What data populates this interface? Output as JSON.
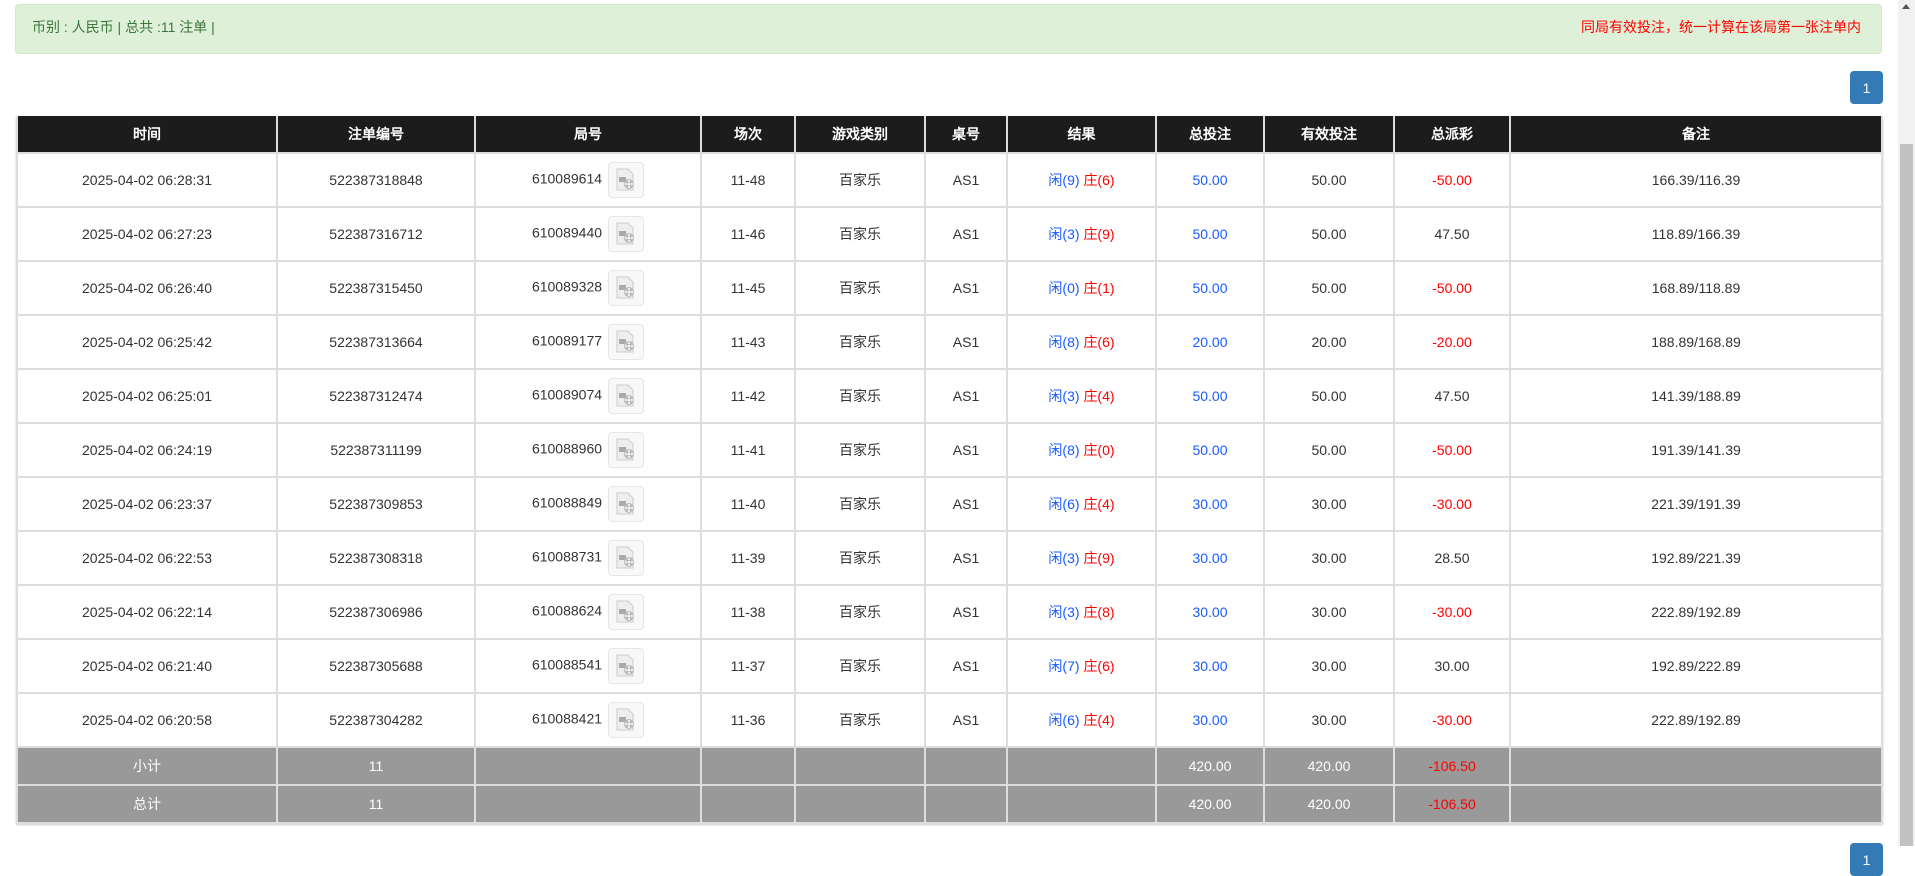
{
  "summary": {
    "left": "币别 : 人民币 | 总共 :11 注单 |",
    "right": "同局有效投注，统一计算在该局第一张注单内"
  },
  "pagination": {
    "current": "1"
  },
  "colors": {
    "player": "#1a5cff",
    "banker": "#ff0000",
    "negative": "#ff0000",
    "header_bg": "#1c1c1c",
    "summary_bg": "#999999",
    "alert_bg": "#dff0d8",
    "pager": "#337ab7"
  },
  "table": {
    "headers": [
      "时间",
      "注单编号",
      "局号",
      "场次",
      "游戏类别",
      "桌号",
      "结果",
      "总投注",
      "有效投注",
      "总派彩",
      "备注"
    ],
    "rows": [
      {
        "time": "2025-04-02 06:28:31",
        "bet_id": "522387318848",
        "round": "610089614",
        "shoe": "11-48",
        "game": "百家乐",
        "table": "AS1",
        "player": "闲(9)",
        "banker": "庄(6)",
        "total": "50.00",
        "valid": "50.00",
        "payout": "-50.00",
        "note": "166.39/116.39"
      },
      {
        "time": "2025-04-02 06:27:23",
        "bet_id": "522387316712",
        "round": "610089440",
        "shoe": "11-46",
        "game": "百家乐",
        "table": "AS1",
        "player": "闲(3)",
        "banker": "庄(9)",
        "total": "50.00",
        "valid": "50.00",
        "payout": "47.50",
        "note": "118.89/166.39"
      },
      {
        "time": "2025-04-02 06:26:40",
        "bet_id": "522387315450",
        "round": "610089328",
        "shoe": "11-45",
        "game": "百家乐",
        "table": "AS1",
        "player": "闲(0)",
        "banker": "庄(1)",
        "total": "50.00",
        "valid": "50.00",
        "payout": "-50.00",
        "note": "168.89/118.89"
      },
      {
        "time": "2025-04-02 06:25:42",
        "bet_id": "522387313664",
        "round": "610089177",
        "shoe": "11-43",
        "game": "百家乐",
        "table": "AS1",
        "player": "闲(8)",
        "banker": "庄(6)",
        "total": "20.00",
        "valid": "20.00",
        "payout": "-20.00",
        "note": "188.89/168.89"
      },
      {
        "time": "2025-04-02 06:25:01",
        "bet_id": "522387312474",
        "round": "610089074",
        "shoe": "11-42",
        "game": "百家乐",
        "table": "AS1",
        "player": "闲(3)",
        "banker": "庄(4)",
        "total": "50.00",
        "valid": "50.00",
        "payout": "47.50",
        "note": "141.39/188.89"
      },
      {
        "time": "2025-04-02 06:24:19",
        "bet_id": "522387311199",
        "round": "610088960",
        "shoe": "11-41",
        "game": "百家乐",
        "table": "AS1",
        "player": "闲(8)",
        "banker": "庄(0)",
        "total": "50.00",
        "valid": "50.00",
        "payout": "-50.00",
        "note": "191.39/141.39"
      },
      {
        "time": "2025-04-02 06:23:37",
        "bet_id": "522387309853",
        "round": "610088849",
        "shoe": "11-40",
        "game": "百家乐",
        "table": "AS1",
        "player": "闲(6)",
        "banker": "庄(4)",
        "total": "30.00",
        "valid": "30.00",
        "payout": "-30.00",
        "note": "221.39/191.39"
      },
      {
        "time": "2025-04-02 06:22:53",
        "bet_id": "522387308318",
        "round": "610088731",
        "shoe": "11-39",
        "game": "百家乐",
        "table": "AS1",
        "player": "闲(3)",
        "banker": "庄(9)",
        "total": "30.00",
        "valid": "30.00",
        "payout": "28.50",
        "note": "192.89/221.39"
      },
      {
        "time": "2025-04-02 06:22:14",
        "bet_id": "522387306986",
        "round": "610088624",
        "shoe": "11-38",
        "game": "百家乐",
        "table": "AS1",
        "player": "闲(3)",
        "banker": "庄(8)",
        "total": "30.00",
        "valid": "30.00",
        "payout": "-30.00",
        "note": "222.89/192.89"
      },
      {
        "time": "2025-04-02 06:21:40",
        "bet_id": "522387305688",
        "round": "610088541",
        "shoe": "11-37",
        "game": "百家乐",
        "table": "AS1",
        "player": "闲(7)",
        "banker": "庄(6)",
        "total": "30.00",
        "valid": "30.00",
        "payout": "30.00",
        "note": "192.89/222.89"
      },
      {
        "time": "2025-04-02 06:20:58",
        "bet_id": "522387304282",
        "round": "610088421",
        "shoe": "11-36",
        "game": "百家乐",
        "table": "AS1",
        "player": "闲(6)",
        "banker": "庄(4)",
        "total": "30.00",
        "valid": "30.00",
        "payout": "-30.00",
        "note": "222.89/192.89"
      }
    ],
    "subtotal": {
      "label": "小计",
      "count": "11",
      "total": "420.00",
      "valid": "420.00",
      "payout": "-106.50"
    },
    "grandtotal": {
      "label": "总计",
      "count": "11",
      "total": "420.00",
      "valid": "420.00",
      "payout": "-106.50"
    }
  },
  "icons": {
    "replay": "video-file-icon"
  }
}
